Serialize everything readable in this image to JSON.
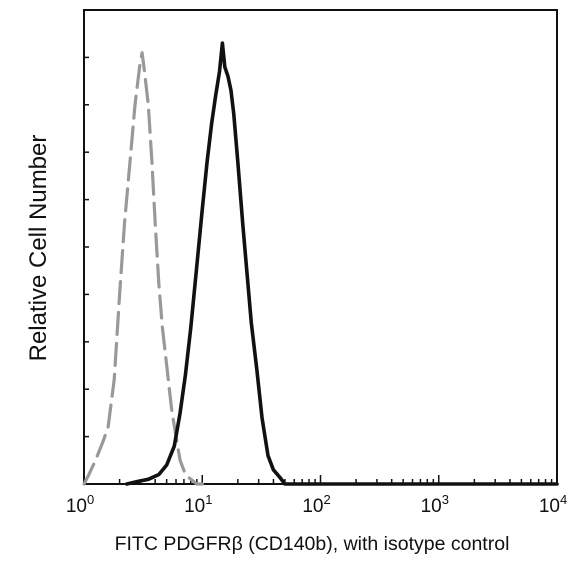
{
  "chart_data": {
    "type": "line",
    "xlabel": "FITC PDGFRβ (CD140b), with isotype control",
    "ylabel": "Relative Cell Number",
    "x_scale": "log",
    "xlim": [
      1,
      10000
    ],
    "ylim": [
      0,
      1.0
    ],
    "grid": false,
    "x_ticks": [
      {
        "base": "10",
        "exp": "0",
        "value": 1
      },
      {
        "base": "10",
        "exp": "1",
        "value": 10
      },
      {
        "base": "10",
        "exp": "2",
        "value": 100
      },
      {
        "base": "10",
        "exp": "3",
        "value": 1000
      },
      {
        "base": "10",
        "exp": "4",
        "value": 10000
      }
    ],
    "y_tick_count": 10,
    "series": [
      {
        "role": "isotype",
        "color": "#999999",
        "dashed": true,
        "points": [
          [
            1.0,
            0.0
          ],
          [
            1.1,
            0.02
          ],
          [
            1.25,
            0.05
          ],
          [
            1.45,
            0.09
          ],
          [
            1.6,
            0.12
          ],
          [
            1.8,
            0.22
          ],
          [
            2.0,
            0.4
          ],
          [
            2.2,
            0.55
          ],
          [
            2.45,
            0.68
          ],
          [
            2.7,
            0.8
          ],
          [
            2.95,
            0.88
          ],
          [
            3.1,
            0.91
          ],
          [
            3.25,
            0.87
          ],
          [
            3.5,
            0.8
          ],
          [
            3.75,
            0.68
          ],
          [
            4.0,
            0.55
          ],
          [
            4.3,
            0.42
          ],
          [
            4.6,
            0.33
          ],
          [
            5.0,
            0.25
          ],
          [
            5.5,
            0.16
          ],
          [
            6.0,
            0.1
          ],
          [
            6.5,
            0.05
          ],
          [
            7.2,
            0.02
          ],
          [
            8.0,
            0.01
          ],
          [
            9.0,
            0.0
          ],
          [
            10.0,
            0.0
          ]
        ]
      },
      {
        "role": "sample",
        "color": "#111111",
        "dashed": false,
        "points": [
          [
            2.3,
            0.0
          ],
          [
            2.8,
            0.005
          ],
          [
            3.5,
            0.01
          ],
          [
            4.3,
            0.02
          ],
          [
            5.0,
            0.04
          ],
          [
            5.8,
            0.08
          ],
          [
            6.5,
            0.15
          ],
          [
            7.2,
            0.23
          ],
          [
            8.0,
            0.33
          ],
          [
            9.0,
            0.46
          ],
          [
            10.0,
            0.58
          ],
          [
            11.0,
            0.68
          ],
          [
            12.0,
            0.76
          ],
          [
            13.0,
            0.82
          ],
          [
            14.0,
            0.87
          ],
          [
            14.8,
            0.93
          ],
          [
            15.5,
            0.88
          ],
          [
            16.5,
            0.86
          ],
          [
            17.5,
            0.83
          ],
          [
            18.5,
            0.78
          ],
          [
            20.0,
            0.68
          ],
          [
            22.0,
            0.55
          ],
          [
            24.0,
            0.44
          ],
          [
            26.0,
            0.34
          ],
          [
            29.0,
            0.24
          ],
          [
            32.0,
            0.14
          ],
          [
            36.0,
            0.06
          ],
          [
            40.0,
            0.03
          ],
          [
            45.0,
            0.015
          ],
          [
            50.0,
            0.0
          ],
          [
            10000.0,
            0.0
          ]
        ]
      }
    ]
  }
}
